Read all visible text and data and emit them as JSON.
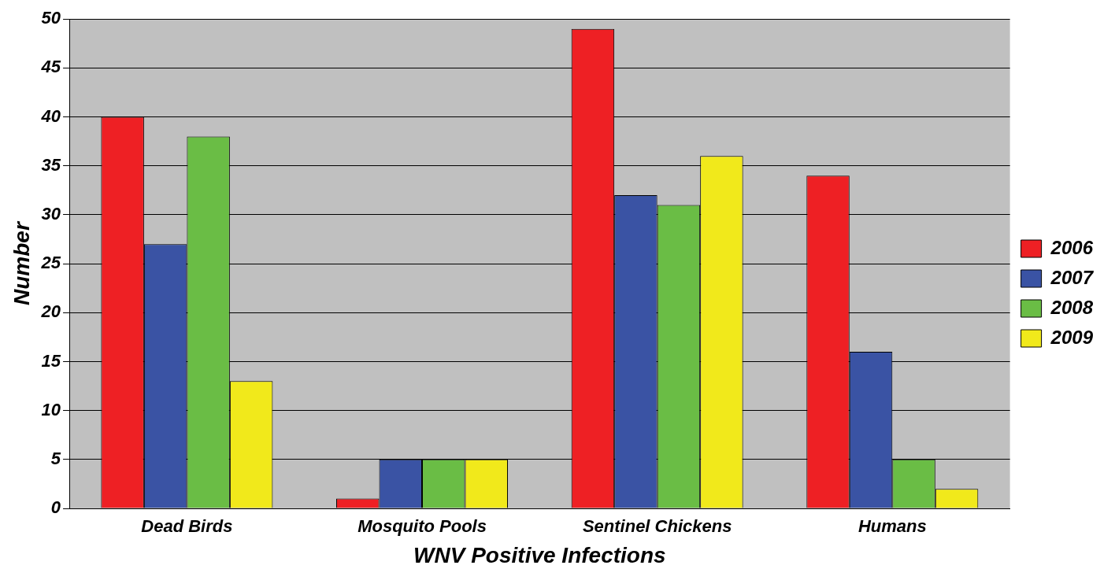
{
  "chart_data": {
    "type": "bar",
    "xlabel": "WNV Positive Infections",
    "ylabel": "Number",
    "categories": [
      "Dead Birds",
      "Mosquito Pools",
      "Sentinel Chickens",
      "Humans"
    ],
    "series": [
      {
        "name": "2006",
        "color": "#ee2024",
        "values": [
          40,
          1,
          49,
          34
        ]
      },
      {
        "name": "2007",
        "color": "#3a53a4",
        "values": [
          27,
          5,
          32,
          16
        ]
      },
      {
        "name": "2008",
        "color": "#6abd45",
        "values": [
          38,
          5,
          31,
          5
        ]
      },
      {
        "name": "2009",
        "color": "#f1e91b",
        "values": [
          13,
          5,
          36,
          2
        ]
      }
    ],
    "ylim": [
      0,
      50
    ],
    "yticks": [
      0,
      5,
      10,
      15,
      20,
      25,
      30,
      35,
      40,
      45,
      50
    ],
    "grid": "y",
    "legend": "right"
  }
}
